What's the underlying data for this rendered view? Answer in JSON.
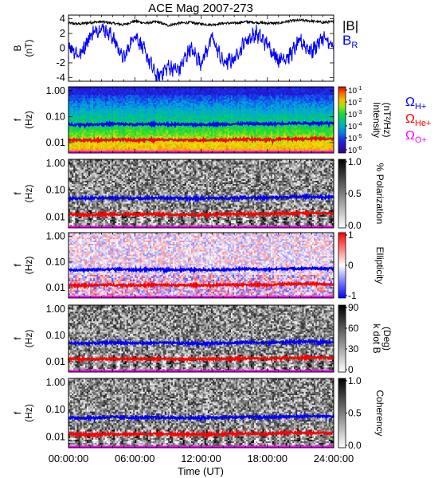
{
  "chart_data": {
    "type": "heatmap",
    "title": "ACE Mag 2007-273",
    "xlabel": "Time (UT)",
    "x_ticks": [
      "00:00:00",
      "06:00:00",
      "12:00:00",
      "18:00:00",
      "24:00:00"
    ],
    "xlim_hours": [
      0,
      24
    ],
    "panels": [
      {
        "id": "field",
        "type": "line",
        "ylabel_line1": "B",
        "ylabel_line2": "(nT)",
        "ylim": [
          -4.5,
          4.5
        ],
        "y_ticks": [
          4,
          2,
          0,
          -2,
          -4
        ],
        "y_tick_labels": [
          "4",
          "2",
          "0",
          "-2",
          "-4"
        ],
        "series": [
          {
            "name": "|B|",
            "color": "#000000",
            "x": [
              0,
              1,
              2,
              3,
              4,
              5,
              6,
              7,
              8,
              9,
              10,
              11,
              12,
              13,
              14,
              15,
              16,
              17,
              18,
              19,
              20,
              21,
              22,
              23,
              24
            ],
            "values": [
              3.4,
              3.3,
              3.5,
              3.6,
              3.4,
              3.2,
              3.7,
              3.4,
              3.6,
              3.1,
              3.4,
              3.5,
              3.3,
              3.2,
              3.4,
              3.4,
              3.6,
              3.5,
              3.4,
              3.4,
              3.7,
              3.8,
              3.7,
              3.5,
              3.6
            ]
          },
          {
            "name": "B_R",
            "color": "#0000ff",
            "x": [
              0,
              1,
              2,
              3,
              4,
              5,
              6,
              7,
              8,
              9,
              10,
              11,
              12,
              13,
              14,
              15,
              16,
              17,
              18,
              19,
              20,
              21,
              22,
              23,
              24
            ],
            "values": [
              0.5,
              -1.0,
              1.8,
              2.9,
              1.5,
              -1.5,
              2.0,
              -0.8,
              -4.0,
              -2.5,
              -3.0,
              0.0,
              -2.0,
              1.5,
              -2.0,
              -1.5,
              1.0,
              2.0,
              0.5,
              -1.5,
              -1.0,
              1.0,
              -0.5,
              1.5,
              0.0
            ]
          }
        ],
        "legend": [
          {
            "label": "|B|",
            "sub": "",
            "color": "#000000"
          },
          {
            "label": "B",
            "sub": "R",
            "color": "#0000ff"
          }
        ]
      },
      {
        "id": "intensity",
        "type": "heatmap",
        "colormap": "rainbow",
        "ylabel_line1": "f",
        "ylabel_line2": "(Hz)",
        "y_log_range": [
          0.004,
          1.4
        ],
        "y_ticks": [
          1.0,
          0.1,
          0.01
        ],
        "y_tick_labels": [
          "1.00",
          "0.10",
          "0.01"
        ],
        "colorbar_label_line1": "Intensity",
        "colorbar_label_line2": "(nT²/Hz)",
        "colorbar_range": [
          1e-06,
          0.1
        ],
        "colorbar_ticks_base": "10",
        "colorbar_ticks_exp": [
          "-1",
          "-2",
          "-3",
          "-4",
          "-5",
          "-6"
        ]
      },
      {
        "id": "polarization",
        "type": "heatmap",
        "colormap": "gray",
        "ylabel_line1": "f",
        "ylabel_line2": "(Hz)",
        "y_log_range": [
          0.004,
          1.4
        ],
        "y_ticks": [
          1.0,
          0.1,
          0.01
        ],
        "y_tick_labels": [
          "1.00",
          "0.10",
          "0.01"
        ],
        "colorbar_label_line1": "% Polarization",
        "colorbar_label_line2": "",
        "colorbar_range": [
          0,
          1
        ],
        "colorbar_ticks": [
          "1.0",
          "0.5",
          "0.0"
        ]
      },
      {
        "id": "ellipticity",
        "type": "heatmap",
        "colormap": "bwr",
        "ylabel_line1": "f",
        "ylabel_line2": "(Hz)",
        "y_log_range": [
          0.004,
          1.4
        ],
        "y_ticks": [
          1.0,
          0.1,
          0.01
        ],
        "y_tick_labels": [
          "1.00",
          "0.10",
          "0.01"
        ],
        "colorbar_label_line1": "Ellipticity",
        "colorbar_label_line2": "",
        "colorbar_range": [
          -1,
          1
        ],
        "colorbar_ticks": [
          "1",
          "0",
          "-1"
        ]
      },
      {
        "id": "kdotb",
        "type": "heatmap",
        "colormap": "gray",
        "ylabel_line1": "f",
        "ylabel_line2": "(Hz)",
        "y_log_range": [
          0.004,
          1.4
        ],
        "y_ticks": [
          1.0,
          0.1,
          0.01
        ],
        "y_tick_labels": [
          "1.00",
          "0.10",
          "0.01"
        ],
        "colorbar_label_line1": "k dot B",
        "colorbar_label_line2": "(Deg)",
        "colorbar_range": [
          0,
          90
        ],
        "colorbar_ticks": [
          "90",
          "60",
          "30",
          "0"
        ]
      },
      {
        "id": "coherency",
        "type": "heatmap",
        "colormap": "gray",
        "ylabel_line1": "f",
        "ylabel_line2": "(Hz)",
        "y_log_range": [
          0.004,
          1.4
        ],
        "y_ticks": [
          1.0,
          0.1,
          0.01
        ],
        "y_tick_labels": [
          "1.00",
          "0.10",
          "0.01"
        ],
        "colorbar_label_line1": "Coherency",
        "colorbar_label_line2": "",
        "colorbar_range": [
          0,
          1
        ],
        "colorbar_ticks": [
          "1.0",
          "0.5",
          "0.0"
        ]
      }
    ],
    "gyrofrequency_lines": [
      {
        "name": "Ω_H+",
        "label": "Ω",
        "sub": "H+",
        "color": "#0000ff",
        "x": [
          0,
          2,
          4,
          6,
          8,
          10,
          12,
          14,
          16,
          18,
          20,
          22,
          24
        ],
        "values": [
          0.05,
          0.05,
          0.053,
          0.05,
          0.052,
          0.05,
          0.05,
          0.051,
          0.054,
          0.052,
          0.056,
          0.057,
          0.055
        ]
      },
      {
        "name": "Ω_He+",
        "label": "Ω",
        "sub": "He+",
        "color": "#ff0000",
        "x": [
          0,
          2,
          4,
          6,
          8,
          10,
          12,
          14,
          16,
          18,
          20,
          22,
          24
        ],
        "values": [
          0.0125,
          0.0125,
          0.013,
          0.0125,
          0.013,
          0.0125,
          0.0125,
          0.0128,
          0.0135,
          0.013,
          0.014,
          0.0142,
          0.0138
        ]
      },
      {
        "name": "Ω_O+",
        "label": "Ω",
        "sub": "O+",
        "color": "#ff00ff",
        "x": [
          0,
          2,
          4,
          6,
          8,
          10,
          12,
          14,
          16,
          18,
          20,
          22,
          24
        ],
        "values": [
          0.0031,
          0.0031,
          0.0033,
          0.0031,
          0.0032,
          0.0031,
          0.0031,
          0.0032,
          0.0034,
          0.0033,
          0.0035,
          0.0036,
          0.0034
        ]
      }
    ],
    "colors": {
      "axis": "#000000",
      "background": "#ffffff"
    }
  }
}
